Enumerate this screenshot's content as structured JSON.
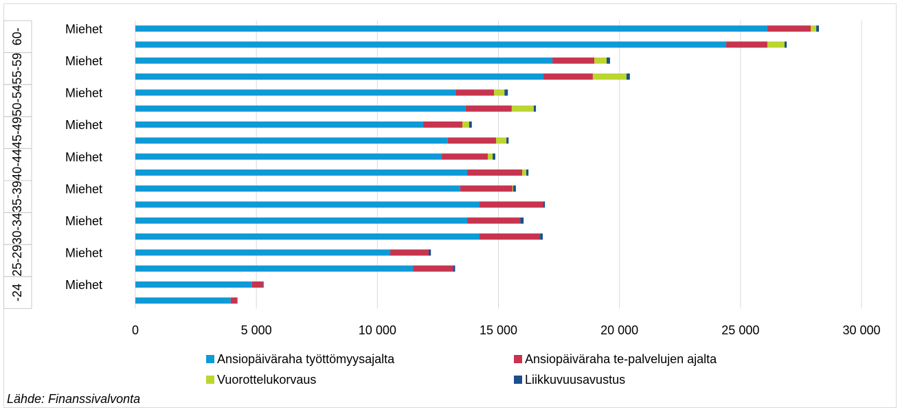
{
  "chart_data": {
    "type": "bar",
    "orientation": "horizontal",
    "stacked": true,
    "groups": [
      "60-",
      "55-59",
      "50-54",
      "45-49",
      "40-44",
      "35-39",
      "30-34",
      "25-29",
      "-24"
    ],
    "categories": [
      "Miehet",
      null,
      "Miehet",
      null,
      "Miehet",
      null,
      "Miehet",
      null,
      "Miehet",
      null,
      "Miehet",
      null,
      "Miehet",
      null,
      "Miehet",
      null,
      "Miehet",
      null
    ],
    "series": [
      {
        "name": "Ansiopäiväraha työttömyysajalta",
        "color": "#0e9ad7",
        "values": [
          26110,
          24410,
          17230,
          16860,
          13230,
          13650,
          11890,
          12910,
          12660,
          13710,
          13420,
          14220,
          13710,
          14220,
          10530,
          11470,
          4820,
          3940
        ]
      },
      {
        "name": "Ansiopäiväraha te-palvelujen ajalta",
        "color": "#c7344f",
        "values": [
          1790,
          1700,
          1730,
          2040,
          1590,
          1900,
          1620,
          1990,
          1900,
          2270,
          2160,
          2640,
          2190,
          2500,
          1590,
          1650,
          450,
          280
        ]
      },
      {
        "name": "Vuorottelukorvaus",
        "color": "#bcd530",
        "values": [
          230,
          710,
          510,
          1390,
          430,
          910,
          280,
          430,
          200,
          170,
          30,
          0,
          0,
          0,
          0,
          0,
          0,
          0
        ]
      },
      {
        "name": "Liikkuvuusavustus",
        "color": "#1a4e8c",
        "values": [
          110,
          90,
          140,
          140,
          140,
          90,
          110,
          90,
          110,
          90,
          110,
          60,
          140,
          110,
          90,
          90,
          30,
          0
        ]
      }
    ],
    "xlim": [
      0,
      30000
    ],
    "xticks": [
      0,
      {
        "value": 5000,
        "label": "5 000"
      },
      {
        "value": 10000,
        "label": "10 000"
      },
      {
        "value": 15000,
        "label": "15 000"
      },
      {
        "value": 20000,
        "label": "20 000"
      },
      {
        "value": 25000,
        "label": "25 000"
      },
      {
        "value": 30000,
        "label": "30 000"
      }
    ],
    "grid": true,
    "legend": "bottom",
    "source": "Lähde: Finanssivalvonta"
  }
}
